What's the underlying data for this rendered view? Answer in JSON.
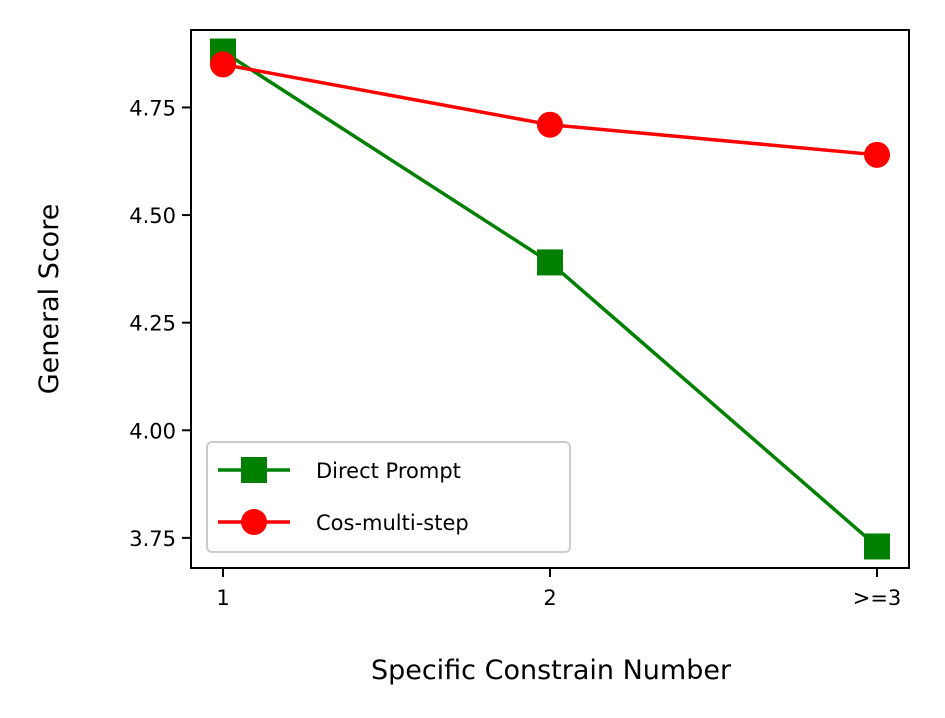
{
  "chart_data": {
    "type": "line",
    "categories": [
      "1",
      "2",
      ">=3"
    ],
    "xlabel": "Specific Constrain Number",
    "ylabel": "General Score",
    "ylim": [
      3.68,
      4.93
    ],
    "yticks": [
      3.75,
      4.0,
      4.25,
      4.5,
      4.75
    ],
    "ytick_labels": [
      "3.75",
      "4.00",
      "4.25",
      "4.50",
      "4.75"
    ],
    "grid": false,
    "legend_position": "lower-left",
    "series": [
      {
        "name": "Direct Prompt",
        "values": [
          4.88,
          4.39,
          3.73
        ],
        "color": "#008000",
        "marker": "square"
      },
      {
        "name": "Cos-multi-step",
        "values": [
          4.85,
          4.71,
          4.64
        ],
        "color": "#ff0000",
        "marker": "circle"
      }
    ]
  }
}
